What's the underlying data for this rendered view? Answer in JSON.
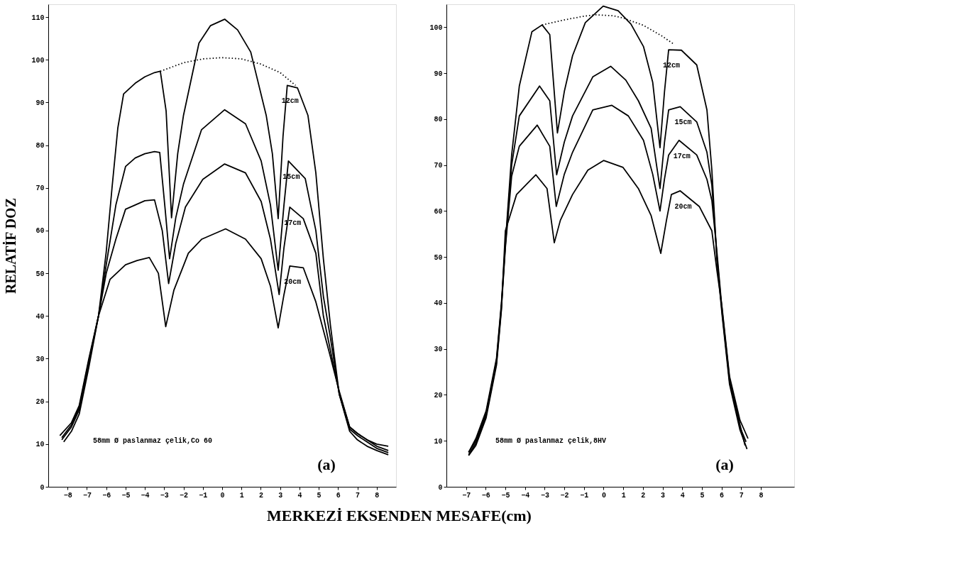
{
  "chart_data": [
    {
      "type": "line",
      "ylabel": "RELATİF DOZ",
      "xlabel": "MERKEZİ EKSENDEN MESAFE(cm)",
      "xlim": [
        -9,
        9
      ],
      "ylim": [
        0,
        113
      ],
      "xticks": [
        -8,
        -7,
        -6,
        -5,
        -4,
        -3,
        -2,
        -1,
        0,
        1,
        2,
        3,
        4,
        5,
        6,
        7,
        8
      ],
      "yticks": [
        0,
        10,
        20,
        30,
        40,
        50,
        60,
        70,
        80,
        90,
        100,
        110
      ],
      "grid": false,
      "line_style": "solid",
      "legend": false,
      "annotations": [
        "58mm Ø paslanmaz çelik,Co 60",
        "(a)"
      ],
      "series": [
        {
          "name": "12cm",
          "color": "#000000",
          "x": [
            -8.4,
            -7.8,
            -7.4,
            -6.9,
            -6.4,
            -6,
            -5.7,
            -5.4,
            -5.1,
            -4.5,
            -4,
            -3.5,
            -3.2,
            -2.9,
            -2.62,
            -2.3,
            -2,
            -1.2,
            -0.6,
            0.13,
            0.8,
            1.48,
            2.28,
            2.6,
            2.9,
            3.15,
            3.37,
            3.9,
            4.44,
            4.85,
            5.24,
            5.6,
            6.06,
            6.6,
            7,
            7.5,
            8,
            8.6
          ],
          "values": [
            12,
            15,
            19,
            30,
            40,
            55,
            70,
            84,
            92,
            94.5,
            96,
            97,
            97.3,
            88,
            63,
            78,
            87,
            103.9,
            108,
            109.5,
            107,
            101.8,
            87,
            78,
            62.8,
            82,
            94,
            93.4,
            87,
            73.5,
            53.4,
            38,
            21.7,
            13,
            11,
            9.5,
            8.5,
            7.5
          ]
        },
        {
          "name": "15cm",
          "color": "#000000",
          "x": [
            -8.3,
            -7.8,
            -7.4,
            -6.9,
            -6.4,
            -6,
            -5.5,
            -5,
            -4.5,
            -4,
            -3.5,
            -3.23,
            -2.95,
            -2.72,
            -2.4,
            -2,
            -1.07,
            0.13,
            1.21,
            2.02,
            2.5,
            2.9,
            3.2,
            3.43,
            4.3,
            4.85,
            5.24,
            5.6,
            6.06,
            6.6,
            7,
            7.5,
            8,
            8.6
          ],
          "values": [
            11.5,
            14.5,
            18.5,
            29.5,
            40,
            52,
            66,
            75,
            77,
            78,
            78.5,
            78.3,
            65,
            53.4,
            63,
            70.9,
            83.6,
            88.3,
            85,
            76.3,
            66,
            50.7,
            66,
            76.3,
            72.2,
            60,
            44.6,
            35,
            21.7,
            13.5,
            12,
            10.5,
            9,
            8
          ]
        },
        {
          "name": "17cm",
          "color": "#000000",
          "x": [
            -8.3,
            -7.8,
            -7.4,
            -6.9,
            -6.4,
            -6,
            -5.5,
            -5,
            -4.5,
            -4,
            -3.5,
            -3.1,
            -2.77,
            -2.4,
            -1.9,
            -1,
            0.13,
            1.21,
            2.02,
            2.5,
            2.95,
            3.2,
            3.5,
            4.2,
            4.85,
            5.24,
            5.6,
            6.06,
            6.6,
            7,
            7.5,
            8,
            8.6
          ],
          "values": [
            11,
            14,
            18,
            29,
            40,
            50,
            58,
            65,
            66,
            67,
            67.2,
            60,
            47.6,
            57,
            65.5,
            72,
            75.6,
            73.5,
            66.8,
            58,
            45,
            56,
            65.5,
            62.8,
            54.7,
            40,
            32,
            22,
            14,
            12.5,
            11,
            9.5,
            8.5
          ]
        },
        {
          "name": "20cm",
          "color": "#000000",
          "x": [
            -8.2,
            -7.8,
            -7.4,
            -6.9,
            -6.4,
            -5.8,
            -5,
            -4.4,
            -3.77,
            -3.3,
            -2.92,
            -2.5,
            -1.75,
            -1.05,
            0.18,
            1.21,
            2.02,
            2.5,
            2.9,
            3.2,
            3.5,
            4.2,
            4.85,
            5.52,
            6.06,
            6.6,
            7,
            7.5,
            8,
            8.6
          ],
          "values": [
            10.5,
            13,
            17,
            28,
            40,
            48.6,
            52,
            53,
            53.7,
            50,
            37.5,
            46,
            54.7,
            58,
            60.4,
            58,
            53.4,
            47,
            37.2,
            45,
            51.7,
            51.3,
            43.3,
            31.9,
            22.4,
            14,
            12.5,
            11,
            10,
            9.5
          ]
        },
        {
          "color": "#000000",
          "line_style": "dotted",
          "x": [
            -3.2,
            -2,
            -1,
            0,
            1,
            2,
            3,
            3.8
          ],
          "values": [
            97.3,
            99.3,
            100.2,
            100.5,
            100.2,
            99,
            97,
            94
          ]
        }
      ]
    },
    {
      "type": "line",
      "xlim": [
        -8,
        9.7
      ],
      "ylim": [
        0,
        105
      ],
      "xticks": [
        -7,
        -6,
        -5,
        -4,
        -3,
        -2,
        -1,
        0,
        1,
        2,
        3,
        4,
        5,
        6,
        7,
        8
      ],
      "yticks": [
        0,
        10,
        20,
        30,
        40,
        50,
        60,
        70,
        80,
        90,
        100
      ],
      "grid": false,
      "line_style": "solid",
      "legend": false,
      "annotations": [
        "58mm Ø paslanmaz çelik,8HV",
        "(a)"
      ],
      "series": [
        {
          "name": "12cm",
          "color": "#000000",
          "x": [
            -6.87,
            -6.5,
            -5.98,
            -5.45,
            -5.2,
            -5,
            -4.68,
            -4.29,
            -3.65,
            -3.13,
            -2.74,
            -2.55,
            -2.35,
            -2,
            -1.58,
            -0.93,
            -0.02,
            0.74,
            1.39,
            2.03,
            2.5,
            2.87,
            3.1,
            3.31,
            3.96,
            4.74,
            5.26,
            5.51,
            5.77,
            6.03,
            6.41,
            6.94,
            7.3
          ],
          "values": [
            7.5,
            10.5,
            16.5,
            28,
            40,
            53,
            72.2,
            87.2,
            99,
            100.5,
            98.4,
            88,
            77,
            86,
            93.8,
            101,
            104.6,
            103.6,
            100.7,
            95.8,
            88,
            73.8,
            86,
            95.1,
            95,
            91.8,
            82,
            68.9,
            49.2,
            37.4,
            22.3,
            12.4,
            8.2
          ]
        },
        {
          "name": "15cm",
          "color": "#000000",
          "x": [
            -6.87,
            -6.5,
            -5.98,
            -5.45,
            -5.2,
            -5,
            -4.68,
            -4.29,
            -3.26,
            -2.74,
            -2.39,
            -2,
            -1.58,
            -0.55,
            0.36,
            1.13,
            1.77,
            2.42,
            2.87,
            3.1,
            3.31,
            3.9,
            4.74,
            5.26,
            5.51,
            5.77,
            6.03,
            6.41,
            6.94,
            7.25
          ],
          "values": [
            7.5,
            10,
            16,
            27.5,
            39.5,
            52.5,
            70,
            80.7,
            87.2,
            84,
            67.9,
            75,
            80.7,
            89.2,
            91.5,
            88.5,
            84,
            78,
            64.9,
            75,
            82,
            82.7,
            79.4,
            72.8,
            65.6,
            50,
            38,
            23,
            13,
            9.8
          ]
        },
        {
          "name": "17cm",
          "color": "#000000",
          "x": [
            -6.87,
            -6.5,
            -5.98,
            -5.45,
            -5.2,
            -5,
            -4.68,
            -4.29,
            -3.38,
            -2.74,
            -2.41,
            -2,
            -1.58,
            -0.55,
            0.42,
            1.26,
            2.03,
            2.5,
            2.87,
            3.1,
            3.31,
            3.84,
            4.74,
            5.26,
            5.51,
            5.77,
            6.03,
            6.41,
            6.94,
            7.2
          ],
          "values": [
            7,
            9.5,
            15.5,
            27,
            39,
            52,
            67.6,
            74.1,
            78.7,
            74.1,
            61,
            68,
            72.8,
            82,
            83,
            80.7,
            75.4,
            68,
            60,
            67,
            72.2,
            75.4,
            72.2,
            66.9,
            62.3,
            51,
            38.5,
            23.5,
            13.5,
            9
          ]
        },
        {
          "name": "20cm",
          "color": "#000000",
          "x": [
            -6.87,
            -6.5,
            -5.98,
            -5.45,
            -5.2,
            -5,
            -4.43,
            -3.45,
            -2.88,
            -2.51,
            -2.2,
            -1.58,
            -0.8,
            0,
            0.99,
            1.77,
            2.42,
            2.91,
            3.2,
            3.45,
            3.9,
            4.87,
            5.51,
            5.77,
            6.03,
            6.41,
            6.94,
            7.35
          ],
          "values": [
            6.8,
            9,
            15,
            26.5,
            38.5,
            55.7,
            63.6,
            67.9,
            64.9,
            53.1,
            58,
            63.6,
            68.9,
            71,
            69.5,
            64.9,
            59,
            50.8,
            58,
            63.6,
            64.4,
            61,
            55.7,
            47,
            39,
            24,
            14.5,
            10.5
          ]
        },
        {
          "color": "#000000",
          "line_style": "dotted",
          "x": [
            -3.13,
            -2,
            -1,
            -0.42,
            0.5,
            1,
            2.03,
            3,
            3.58
          ],
          "values": [
            100.5,
            101.6,
            102.4,
            102.7,
            102.5,
            102,
            100.4,
            98,
            96.3
          ]
        }
      ]
    }
  ]
}
